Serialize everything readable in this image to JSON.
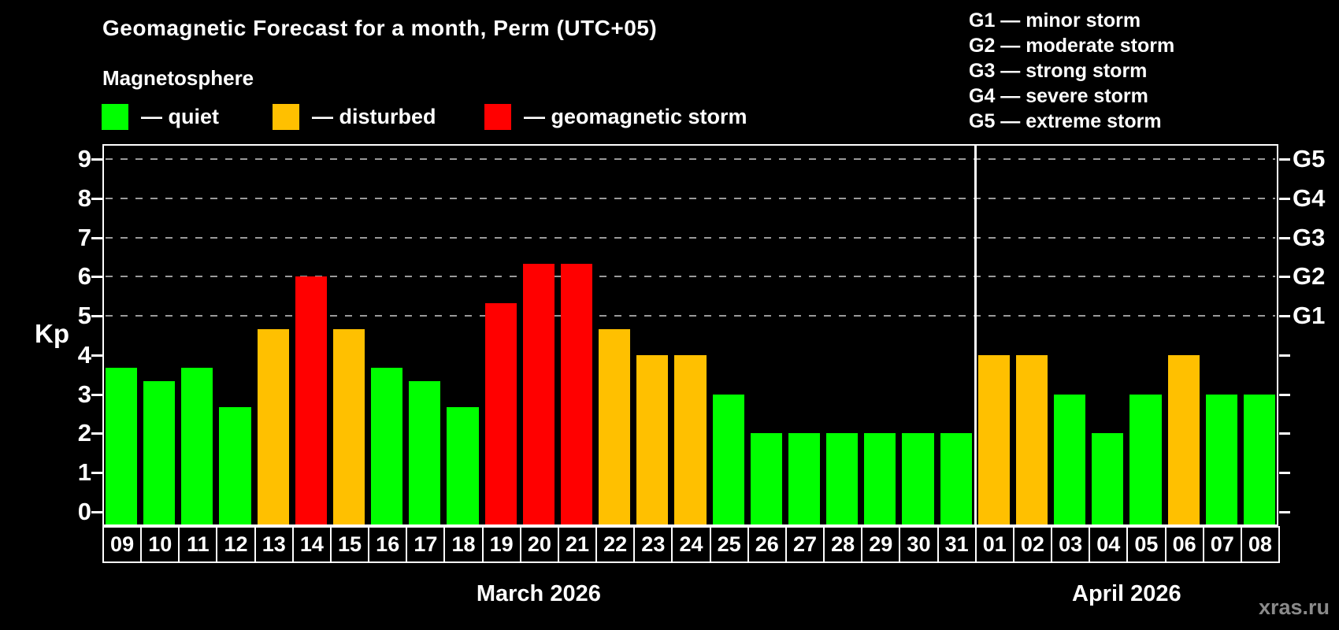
{
  "title": "Geomagnetic Forecast for a month, Perm (UTC+05)",
  "subtitle": "Magnetosphere",
  "legend": [
    {
      "key": "quiet",
      "label": "— quiet",
      "color": "#00ff00"
    },
    {
      "key": "disturbed",
      "label": "— disturbed",
      "color": "#ffc000"
    },
    {
      "key": "storm",
      "label": "— geomagnetic storm",
      "color": "#ff0000"
    }
  ],
  "g_legend": [
    "G1 — minor storm",
    "G2 — moderate storm",
    "G3 — strong storm",
    "G4 — severe storm",
    "G5 — extreme storm"
  ],
  "watermark": "xras.ru",
  "chart_data": {
    "type": "bar",
    "title": "Geomagnetic Forecast for a month, Perm (UTC+05)",
    "ylabel": "Kp",
    "ylim": [
      0,
      9
    ],
    "y_ticks": [
      0,
      1,
      2,
      3,
      4,
      5,
      6,
      7,
      8,
      9
    ],
    "right_axis_ticks": [
      {
        "kp": 5,
        "label": "G1"
      },
      {
        "kp": 6,
        "label": "G2"
      },
      {
        "kp": 7,
        "label": "G3"
      },
      {
        "kp": 8,
        "label": "G4"
      },
      {
        "kp": 9,
        "label": "G5"
      }
    ],
    "grid_levels": [
      5,
      6,
      7,
      8,
      9
    ],
    "grid": "dashed horizontal lines at Kp 5..9",
    "legend_position": "top-left",
    "palette": {
      "quiet": "#00ff00",
      "disturbed": "#ffc000",
      "storm": "#ff0000"
    },
    "months": [
      {
        "label": "March 2026",
        "days": [
          "09",
          "10",
          "11",
          "12",
          "13",
          "14",
          "15",
          "16",
          "17",
          "18",
          "19",
          "20",
          "21",
          "22",
          "23",
          "24",
          "25",
          "26",
          "27",
          "28",
          "29",
          "30",
          "31"
        ],
        "values": [
          3.67,
          3.33,
          3.67,
          2.67,
          4.67,
          6.0,
          4.67,
          3.67,
          3.33,
          2.67,
          5.33,
          6.33,
          6.33,
          4.67,
          4.0,
          4.0,
          3.0,
          2.0,
          2.0,
          2.0,
          2.0,
          2.0,
          2.0
        ],
        "status": [
          "quiet",
          "quiet",
          "quiet",
          "quiet",
          "disturbed",
          "storm",
          "disturbed",
          "quiet",
          "quiet",
          "quiet",
          "storm",
          "storm",
          "storm",
          "disturbed",
          "disturbed",
          "disturbed",
          "quiet",
          "quiet",
          "quiet",
          "quiet",
          "quiet",
          "quiet",
          "quiet"
        ]
      },
      {
        "label": "April 2026",
        "days": [
          "01",
          "02",
          "03",
          "04",
          "05",
          "06",
          "07",
          "08"
        ],
        "values": [
          4.0,
          4.0,
          3.0,
          2.0,
          3.0,
          4.0,
          3.0,
          3.0
        ],
        "status": [
          "disturbed",
          "disturbed",
          "quiet",
          "quiet",
          "quiet",
          "disturbed",
          "quiet",
          "quiet"
        ]
      }
    ]
  }
}
